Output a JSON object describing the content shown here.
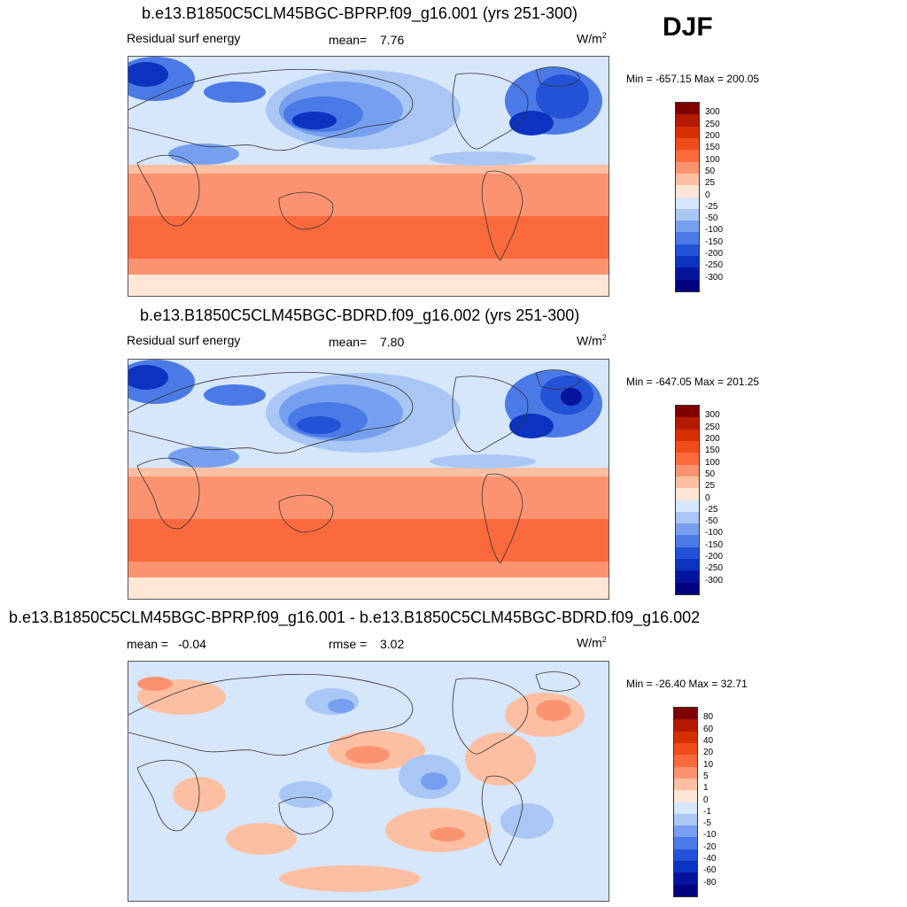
{
  "season": "DJF",
  "panels": [
    {
      "title": "b.e13.B1850C5CLM45BGC-BPRP.f09_g16.001 (yrs 251-300)",
      "variable": "Residual surf energy",
      "stat_label": "mean=",
      "stat_value": "7.76",
      "units_base": "W/m",
      "units_sup": "2",
      "min_max": "Min = -657.15 Max = 200.05",
      "colorbar": {
        "labels": [
          "300",
          "250",
          "200",
          "150",
          "100",
          "50",
          "25",
          "0",
          "-25",
          "-50",
          "-100",
          "-150",
          "-200",
          "-250",
          "-300"
        ],
        "colors": [
          "#800000",
          "#b41a00",
          "#d73000",
          "#f04c1b",
          "#fa6a3c",
          "#fc9370",
          "#fdbfa2",
          "#fee6d6",
          "#d6e6fb",
          "#a9c6f5",
          "#76a0ef",
          "#4b79e6",
          "#2452d6",
          "#0b33bf",
          "#05149c",
          "#000080"
        ]
      },
      "chart_data": {
        "type": "heatmap",
        "title": "b.e13.B1850C5CLM45BGC-BPRP.f09_g16.001 (yrs 251-300)",
        "variable": "Residual surf energy",
        "units": "W/m2",
        "season": "DJF",
        "mean": 7.76,
        "min": -657.15,
        "max": 200.05,
        "levels": [
          -300,
          -250,
          -200,
          -150,
          -100,
          -50,
          -25,
          0,
          25,
          50,
          100,
          150,
          200,
          250,
          300
        ]
      }
    },
    {
      "title": "b.e13.B1850C5CLM45BGC-BDRD.f09_g16.002 (yrs 251-300)",
      "variable": "Residual surf energy",
      "stat_label": "mean=",
      "stat_value": "7.80",
      "units_base": "W/m",
      "units_sup": "2",
      "min_max": "Min = -647.05 Max = 201.25",
      "colorbar": {
        "labels": [
          "300",
          "250",
          "200",
          "150",
          "100",
          "50",
          "25",
          "0",
          "-25",
          "-50",
          "-100",
          "-150",
          "-200",
          "-250",
          "-300"
        ],
        "colors": [
          "#800000",
          "#b41a00",
          "#d73000",
          "#f04c1b",
          "#fa6a3c",
          "#fc9370",
          "#fdbfa2",
          "#fee6d6",
          "#d6e6fb",
          "#a9c6f5",
          "#76a0ef",
          "#4b79e6",
          "#2452d6",
          "#0b33bf",
          "#05149c",
          "#000080"
        ]
      },
      "chart_data": {
        "type": "heatmap",
        "title": "b.e13.B1850C5CLM45BGC-BDRD.f09_g16.002 (yrs 251-300)",
        "variable": "Residual surf energy",
        "units": "W/m2",
        "season": "DJF",
        "mean": 7.8,
        "min": -647.05,
        "max": 201.25,
        "levels": [
          -300,
          -250,
          -200,
          -150,
          -100,
          -50,
          -25,
          0,
          25,
          50,
          100,
          150,
          200,
          250,
          300
        ]
      }
    },
    {
      "title": "b.e13.B1850C5CLM45BGC-BPRP.f09_g16.001 - b.e13.B1850C5CLM45BGC-BDRD.f09_g16.002",
      "stat_label": "mean =",
      "stat_value": "-0.04",
      "stat2_label": "rmse =",
      "stat2_value": "3.02",
      "units_base": "W/m",
      "units_sup": "2",
      "min_max": "Min = -26.40 Max =  32.71",
      "colorbar": {
        "labels": [
          "80",
          "60",
          "40",
          "20",
          "10",
          "5",
          "1",
          "0",
          "-1",
          "-5",
          "-10",
          "-20",
          "-40",
          "-60",
          "-80"
        ],
        "colors": [
          "#800000",
          "#b41a00",
          "#d73000",
          "#f04c1b",
          "#fa6a3c",
          "#fc9370",
          "#fdbfa2",
          "#fee6d6",
          "#d6e6fb",
          "#a9c6f5",
          "#76a0ef",
          "#4b79e6",
          "#2452d6",
          "#0b33bf",
          "#05149c",
          "#000080"
        ]
      },
      "chart_data": {
        "type": "heatmap",
        "title": "b.e13.B1850C5CLM45BGC-BPRP.f09_g16.001 - b.e13.B1850C5CLM45BGC-BDRD.f09_g16.002",
        "units": "W/m2",
        "season": "DJF",
        "mean": -0.04,
        "rmse": 3.02,
        "min": -26.4,
        "max": 32.71,
        "levels": [
          -80,
          -60,
          -40,
          -20,
          -10,
          -5,
          -1,
          0,
          1,
          5,
          10,
          20,
          40,
          60,
          80
        ]
      }
    }
  ]
}
